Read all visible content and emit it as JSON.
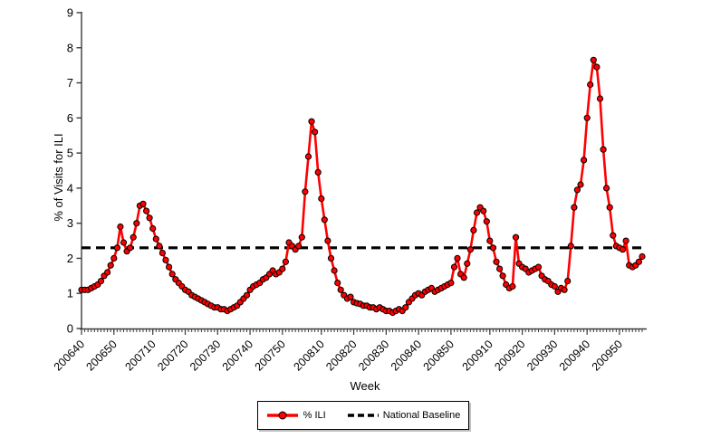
{
  "axes": {
    "x_title": "Week",
    "y_title": "% of Visits for ILI"
  },
  "legend": {
    "ili_label": "% ILI",
    "baseline_label": "National Baseline"
  },
  "chart_data": {
    "type": "line",
    "title": "",
    "xlabel": "Week",
    "ylabel": "% of Visits for ILI",
    "ylim": [
      0,
      9
    ],
    "y_ticks": [
      0,
      1,
      2,
      3,
      4,
      5,
      6,
      7,
      8,
      9
    ],
    "grid": false,
    "legend_position": "bottom-center",
    "x_tick_labels": [
      "200640",
      "200650",
      "200710",
      "200720",
      "200730",
      "200740",
      "200750",
      "200810",
      "200820",
      "200830",
      "200840",
      "200850",
      "200910",
      "200920",
      "200930",
      "200940",
      "200950"
    ],
    "weeks": [
      "200640",
      "200641",
      "200642",
      "200643",
      "200644",
      "200645",
      "200646",
      "200647",
      "200648",
      "200649",
      "200650",
      "200651",
      "200652",
      "200701",
      "200702",
      "200703",
      "200704",
      "200705",
      "200706",
      "200707",
      "200708",
      "200709",
      "200710",
      "200711",
      "200712",
      "200713",
      "200714",
      "200715",
      "200716",
      "200717",
      "200718",
      "200719",
      "200720",
      "200721",
      "200722",
      "200723",
      "200724",
      "200725",
      "200726",
      "200727",
      "200728",
      "200729",
      "200730",
      "200731",
      "200732",
      "200733",
      "200734",
      "200735",
      "200736",
      "200737",
      "200738",
      "200739",
      "200740",
      "200741",
      "200742",
      "200743",
      "200744",
      "200745",
      "200746",
      "200747",
      "200748",
      "200749",
      "200750",
      "200751",
      "200752",
      "200801",
      "200802",
      "200803",
      "200804",
      "200805",
      "200806",
      "200807",
      "200808",
      "200809",
      "200810",
      "200811",
      "200812",
      "200813",
      "200814",
      "200815",
      "200816",
      "200817",
      "200818",
      "200819",
      "200820",
      "200821",
      "200822",
      "200823",
      "200824",
      "200825",
      "200826",
      "200827",
      "200828",
      "200829",
      "200830",
      "200831",
      "200832",
      "200833",
      "200834",
      "200835",
      "200836",
      "200837",
      "200838",
      "200839",
      "200840",
      "200841",
      "200842",
      "200843",
      "200844",
      "200845",
      "200846",
      "200847",
      "200848",
      "200849",
      "200850",
      "200851",
      "200852",
      "200901",
      "200902",
      "200903",
      "200904",
      "200905",
      "200906",
      "200907",
      "200908",
      "200909",
      "200910",
      "200911",
      "200912",
      "200913",
      "200914",
      "200915",
      "200916",
      "200917",
      "200918",
      "200919",
      "200920",
      "200921",
      "200922",
      "200923",
      "200924",
      "200925",
      "200926",
      "200927",
      "200928",
      "200929",
      "200930",
      "200931",
      "200932",
      "200933",
      "200934",
      "200935",
      "200936",
      "200937",
      "200938",
      "200939",
      "200940",
      "200941",
      "200942",
      "200943",
      "200944",
      "200945",
      "200946",
      "200947",
      "200948",
      "200949",
      "200950",
      "200951",
      "200952",
      "200953",
      "201001",
      "201002",
      "201003",
      "201004"
    ],
    "series": [
      {
        "name": "% ILI",
        "color": "#ff0000",
        "marker": "circle",
        "marker_outline": "#000000",
        "values": [
          1.1,
          1.1,
          1.1,
          1.15,
          1.2,
          1.25,
          1.35,
          1.5,
          1.6,
          1.8,
          2.0,
          2.3,
          2.9,
          2.45,
          2.2,
          2.3,
          2.6,
          3.0,
          3.5,
          3.55,
          3.35,
          3.15,
          2.85,
          2.55,
          2.35,
          2.15,
          1.95,
          1.75,
          1.55,
          1.4,
          1.3,
          1.2,
          1.1,
          1.05,
          0.95,
          0.9,
          0.85,
          0.8,
          0.75,
          0.7,
          0.65,
          0.6,
          0.6,
          0.55,
          0.55,
          0.5,
          0.55,
          0.6,
          0.65,
          0.75,
          0.85,
          0.95,
          1.1,
          1.2,
          1.25,
          1.3,
          1.4,
          1.45,
          1.55,
          1.65,
          1.55,
          1.6,
          1.7,
          1.9,
          2.45,
          2.35,
          2.25,
          2.35,
          2.6,
          3.9,
          4.9,
          5.9,
          5.6,
          4.45,
          3.7,
          3.1,
          2.5,
          2.0,
          1.65,
          1.3,
          1.1,
          0.95,
          0.85,
          0.9,
          0.75,
          0.72,
          0.7,
          0.65,
          0.65,
          0.6,
          0.6,
          0.55,
          0.6,
          0.55,
          0.5,
          0.5,
          0.45,
          0.5,
          0.55,
          0.5,
          0.6,
          0.75,
          0.85,
          0.95,
          1.0,
          0.95,
          1.05,
          1.1,
          1.15,
          1.05,
          1.1,
          1.15,
          1.2,
          1.25,
          1.3,
          1.75,
          2.0,
          1.55,
          1.45,
          1.85,
          2.25,
          2.8,
          3.3,
          3.45,
          3.35,
          3.05,
          2.5,
          2.3,
          1.9,
          1.7,
          1.5,
          1.25,
          1.15,
          1.2,
          2.6,
          1.85,
          1.75,
          1.7,
          1.6,
          1.65,
          1.7,
          1.75,
          1.5,
          1.4,
          1.35,
          1.25,
          1.2,
          1.05,
          1.15,
          1.1,
          1.35,
          2.35,
          3.45,
          3.95,
          4.1,
          4.8,
          6.0,
          6.95,
          7.65,
          7.45,
          6.55,
          5.1,
          4.0,
          3.45,
          2.65,
          2.35,
          2.3,
          2.25,
          2.5,
          1.8,
          1.75,
          1.8,
          1.9,
          2.05
        ]
      },
      {
        "name": "National Baseline",
        "color": "#000000",
        "style": "dashed",
        "value": 2.3
      }
    ]
  }
}
